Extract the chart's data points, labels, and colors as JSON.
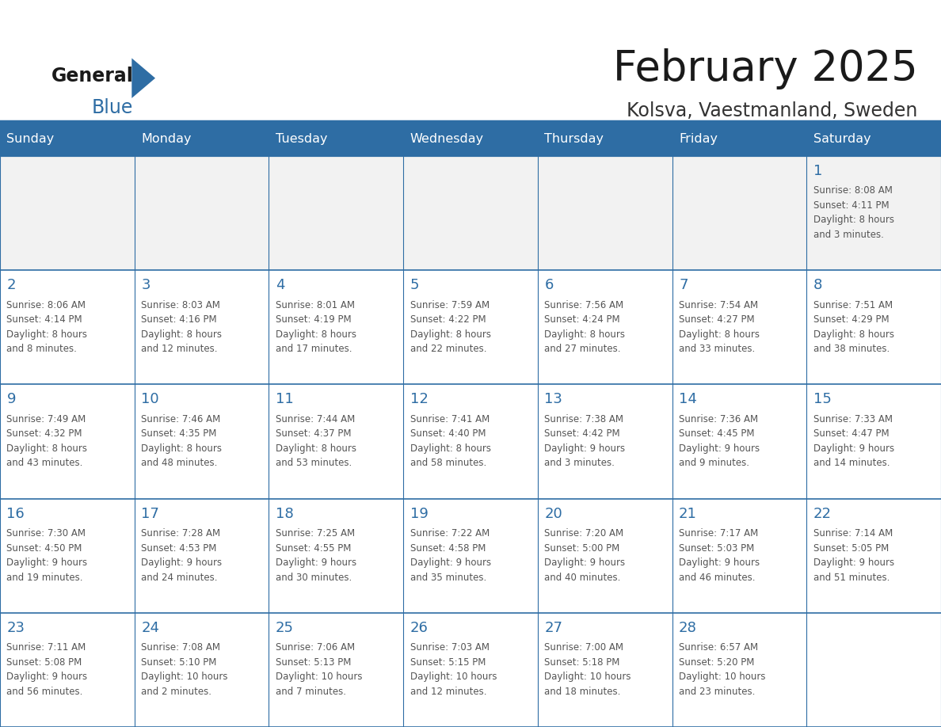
{
  "title": "February 2025",
  "subtitle": "Kolsva, Vaestmanland, Sweden",
  "header_bg": "#2e6da4",
  "header_text_color": "#ffffff",
  "cell_bg": "#ffffff",
  "cell_bg_alt": "#f2f2f2",
  "day_number_color": "#2e6da4",
  "info_text_color": "#555555",
  "border_color": "#2e6da4",
  "days_of_week": [
    "Sunday",
    "Monday",
    "Tuesday",
    "Wednesday",
    "Thursday",
    "Friday",
    "Saturday"
  ],
  "weeks": [
    [
      {
        "day": "",
        "info": ""
      },
      {
        "day": "",
        "info": ""
      },
      {
        "day": "",
        "info": ""
      },
      {
        "day": "",
        "info": ""
      },
      {
        "day": "",
        "info": ""
      },
      {
        "day": "",
        "info": ""
      },
      {
        "day": "1",
        "info": "Sunrise: 8:08 AM\nSunset: 4:11 PM\nDaylight: 8 hours\nand 3 minutes."
      }
    ],
    [
      {
        "day": "2",
        "info": "Sunrise: 8:06 AM\nSunset: 4:14 PM\nDaylight: 8 hours\nand 8 minutes."
      },
      {
        "day": "3",
        "info": "Sunrise: 8:03 AM\nSunset: 4:16 PM\nDaylight: 8 hours\nand 12 minutes."
      },
      {
        "day": "4",
        "info": "Sunrise: 8:01 AM\nSunset: 4:19 PM\nDaylight: 8 hours\nand 17 minutes."
      },
      {
        "day": "5",
        "info": "Sunrise: 7:59 AM\nSunset: 4:22 PM\nDaylight: 8 hours\nand 22 minutes."
      },
      {
        "day": "6",
        "info": "Sunrise: 7:56 AM\nSunset: 4:24 PM\nDaylight: 8 hours\nand 27 minutes."
      },
      {
        "day": "7",
        "info": "Sunrise: 7:54 AM\nSunset: 4:27 PM\nDaylight: 8 hours\nand 33 minutes."
      },
      {
        "day": "8",
        "info": "Sunrise: 7:51 AM\nSunset: 4:29 PM\nDaylight: 8 hours\nand 38 minutes."
      }
    ],
    [
      {
        "day": "9",
        "info": "Sunrise: 7:49 AM\nSunset: 4:32 PM\nDaylight: 8 hours\nand 43 minutes."
      },
      {
        "day": "10",
        "info": "Sunrise: 7:46 AM\nSunset: 4:35 PM\nDaylight: 8 hours\nand 48 minutes."
      },
      {
        "day": "11",
        "info": "Sunrise: 7:44 AM\nSunset: 4:37 PM\nDaylight: 8 hours\nand 53 minutes."
      },
      {
        "day": "12",
        "info": "Sunrise: 7:41 AM\nSunset: 4:40 PM\nDaylight: 8 hours\nand 58 minutes."
      },
      {
        "day": "13",
        "info": "Sunrise: 7:38 AM\nSunset: 4:42 PM\nDaylight: 9 hours\nand 3 minutes."
      },
      {
        "day": "14",
        "info": "Sunrise: 7:36 AM\nSunset: 4:45 PM\nDaylight: 9 hours\nand 9 minutes."
      },
      {
        "day": "15",
        "info": "Sunrise: 7:33 AM\nSunset: 4:47 PM\nDaylight: 9 hours\nand 14 minutes."
      }
    ],
    [
      {
        "day": "16",
        "info": "Sunrise: 7:30 AM\nSunset: 4:50 PM\nDaylight: 9 hours\nand 19 minutes."
      },
      {
        "day": "17",
        "info": "Sunrise: 7:28 AM\nSunset: 4:53 PM\nDaylight: 9 hours\nand 24 minutes."
      },
      {
        "day": "18",
        "info": "Sunrise: 7:25 AM\nSunset: 4:55 PM\nDaylight: 9 hours\nand 30 minutes."
      },
      {
        "day": "19",
        "info": "Sunrise: 7:22 AM\nSunset: 4:58 PM\nDaylight: 9 hours\nand 35 minutes."
      },
      {
        "day": "20",
        "info": "Sunrise: 7:20 AM\nSunset: 5:00 PM\nDaylight: 9 hours\nand 40 minutes."
      },
      {
        "day": "21",
        "info": "Sunrise: 7:17 AM\nSunset: 5:03 PM\nDaylight: 9 hours\nand 46 minutes."
      },
      {
        "day": "22",
        "info": "Sunrise: 7:14 AM\nSunset: 5:05 PM\nDaylight: 9 hours\nand 51 minutes."
      }
    ],
    [
      {
        "day": "23",
        "info": "Sunrise: 7:11 AM\nSunset: 5:08 PM\nDaylight: 9 hours\nand 56 minutes."
      },
      {
        "day": "24",
        "info": "Sunrise: 7:08 AM\nSunset: 5:10 PM\nDaylight: 10 hours\nand 2 minutes."
      },
      {
        "day": "25",
        "info": "Sunrise: 7:06 AM\nSunset: 5:13 PM\nDaylight: 10 hours\nand 7 minutes."
      },
      {
        "day": "26",
        "info": "Sunrise: 7:03 AM\nSunset: 5:15 PM\nDaylight: 10 hours\nand 12 minutes."
      },
      {
        "day": "27",
        "info": "Sunrise: 7:00 AM\nSunset: 5:18 PM\nDaylight: 10 hours\nand 18 minutes."
      },
      {
        "day": "28",
        "info": "Sunrise: 6:57 AM\nSunset: 5:20 PM\nDaylight: 10 hours\nand 23 minutes."
      },
      {
        "day": "",
        "info": ""
      }
    ]
  ]
}
